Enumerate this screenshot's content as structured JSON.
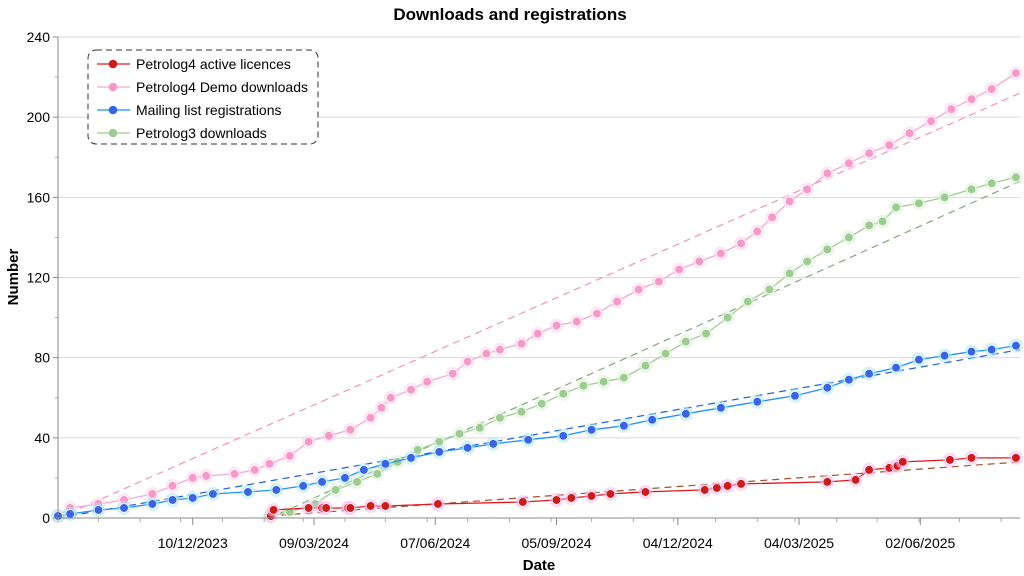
{
  "chart_data": {
    "type": "line",
    "title": "Downloads and registrations",
    "xlabel": "Date",
    "ylabel": "Number",
    "x_ticks": [
      "10/12/2023",
      "09/03/2024",
      "07/06/2024",
      "05/09/2024",
      "04/12/2024",
      "04/03/2025",
      "02/06/2025"
    ],
    "x_start": "2023-09-01",
    "x_end": "2025-08-15",
    "ylim": [
      0,
      240
    ],
    "y_ticks": [
      0,
      40,
      80,
      120,
      160,
      200,
      240
    ],
    "grid": "horizontal",
    "legend_position": "top-left",
    "series": [
      {
        "name": "Petrolog4 active licences",
        "color": "#e0161e",
        "marker_color": "#c81e1e",
        "halo_color": "#f7b6f0",
        "trend_color": "#a0522d",
        "trendline": [
          [
            "2024-02-05",
            1
          ],
          [
            "2025-08-15",
            28
          ]
        ],
        "points": [
          [
            "2024-02-06",
            1
          ],
          [
            "2024-02-08",
            4
          ],
          [
            "2024-03-05",
            5
          ],
          [
            "2024-03-15",
            5
          ],
          [
            "2024-03-18",
            5
          ],
          [
            "2024-04-03",
            5
          ],
          [
            "2024-04-05",
            5
          ],
          [
            "2024-04-20",
            6
          ],
          [
            "2024-05-01",
            6
          ],
          [
            "2024-06-09",
            7
          ],
          [
            "2024-08-11",
            8
          ],
          [
            "2024-09-05",
            9
          ],
          [
            "2024-09-16",
            10
          ],
          [
            "2024-10-01",
            11
          ],
          [
            "2024-10-15",
            12
          ],
          [
            "2024-11-10",
            13
          ],
          [
            "2024-12-24",
            14
          ],
          [
            "2025-01-02",
            15
          ],
          [
            "2025-01-10",
            16
          ],
          [
            "2025-01-20",
            17
          ],
          [
            "2025-03-25",
            18
          ],
          [
            "2025-04-15",
            19
          ],
          [
            "2025-04-25",
            24
          ],
          [
            "2025-05-10",
            25
          ],
          [
            "2025-05-16",
            26
          ],
          [
            "2025-05-20",
            28
          ],
          [
            "2025-06-24",
            29
          ],
          [
            "2025-07-10",
            30
          ],
          [
            "2025-08-12",
            30
          ]
        ]
      },
      {
        "name": "Petrolog4 Demo downloads",
        "color": "#f4a6d4",
        "marker_color": "#f49ac8",
        "halo_color": "#f9d4ec",
        "trend_color": "#f490c4",
        "trendline": [
          [
            "2023-09-01",
            0
          ],
          [
            "2025-08-15",
            212
          ]
        ],
        "points": [
          [
            "2023-09-01",
            1
          ],
          [
            "2023-09-10",
            5
          ],
          [
            "2023-10-01",
            7
          ],
          [
            "2023-10-20",
            9
          ],
          [
            "2023-11-10",
            12
          ],
          [
            "2023-11-25",
            16
          ],
          [
            "2023-12-10",
            20
          ],
          [
            "2023-12-20",
            21
          ],
          [
            "2024-01-10",
            22
          ],
          [
            "2024-01-25",
            24
          ],
          [
            "2024-02-05",
            27
          ],
          [
            "2024-02-20",
            31
          ],
          [
            "2024-03-05",
            38
          ],
          [
            "2024-03-20",
            41
          ],
          [
            "2024-04-05",
            44
          ],
          [
            "2024-04-20",
            50
          ],
          [
            "2024-04-28",
            55
          ],
          [
            "2024-05-05",
            60
          ],
          [
            "2024-05-20",
            64
          ],
          [
            "2024-06-01",
            68
          ],
          [
            "2024-06-20",
            72
          ],
          [
            "2024-07-01",
            78
          ],
          [
            "2024-07-15",
            82
          ],
          [
            "2024-07-25",
            84
          ],
          [
            "2024-08-10",
            87
          ],
          [
            "2024-08-22",
            92
          ],
          [
            "2024-09-05",
            96
          ],
          [
            "2024-09-20",
            98
          ],
          [
            "2024-10-05",
            102
          ],
          [
            "2024-10-20",
            108
          ],
          [
            "2024-11-05",
            114
          ],
          [
            "2024-11-20",
            118
          ],
          [
            "2024-12-05",
            124
          ],
          [
            "2024-12-20",
            128
          ],
          [
            "2025-01-05",
            132
          ],
          [
            "2025-01-20",
            137
          ],
          [
            "2025-02-01",
            143
          ],
          [
            "2025-02-12",
            150
          ],
          [
            "2025-02-25",
            158
          ],
          [
            "2025-03-10",
            164
          ],
          [
            "2025-03-25",
            172
          ],
          [
            "2025-04-10",
            177
          ],
          [
            "2025-04-25",
            182
          ],
          [
            "2025-05-10",
            186
          ],
          [
            "2025-05-25",
            192
          ],
          [
            "2025-06-10",
            198
          ],
          [
            "2025-06-25",
            204
          ],
          [
            "2025-07-10",
            209
          ],
          [
            "2025-07-25",
            214
          ],
          [
            "2025-08-12",
            222
          ]
        ]
      },
      {
        "name": "Mailing list registrations",
        "color": "#1e90ff",
        "marker_color": "#3b64e0",
        "halo_color": "#a8e8f4",
        "trend_color": "#1f5fd6",
        "trendline": [
          [
            "2023-09-01",
            0
          ],
          [
            "2025-08-15",
            84
          ]
        ],
        "points": [
          [
            "2023-09-01",
            1
          ],
          [
            "2023-09-10",
            2
          ],
          [
            "2023-10-01",
            4
          ],
          [
            "2023-10-20",
            5
          ],
          [
            "2023-11-10",
            7
          ],
          [
            "2023-11-25",
            9
          ],
          [
            "2023-12-10",
            10
          ],
          [
            "2023-12-25",
            12
          ],
          [
            "2024-01-20",
            13
          ],
          [
            "2024-02-10",
            14
          ],
          [
            "2024-03-01",
            16
          ],
          [
            "2024-03-15",
            18
          ],
          [
            "2024-04-01",
            20
          ],
          [
            "2024-04-15",
            24
          ],
          [
            "2024-05-01",
            27
          ],
          [
            "2024-05-20",
            30
          ],
          [
            "2024-06-10",
            33
          ],
          [
            "2024-07-01",
            35
          ],
          [
            "2024-07-20",
            37
          ],
          [
            "2024-08-15",
            39
          ],
          [
            "2024-09-10",
            41
          ],
          [
            "2024-10-01",
            44
          ],
          [
            "2024-10-25",
            46
          ],
          [
            "2024-11-15",
            49
          ],
          [
            "2024-12-10",
            52
          ],
          [
            "2025-01-05",
            55
          ],
          [
            "2025-02-01",
            58
          ],
          [
            "2025-03-01",
            61
          ],
          [
            "2025-03-25",
            65
          ],
          [
            "2025-04-10",
            69
          ],
          [
            "2025-04-25",
            72
          ],
          [
            "2025-05-15",
            75
          ],
          [
            "2025-06-01",
            79
          ],
          [
            "2025-06-20",
            81
          ],
          [
            "2025-07-10",
            83
          ],
          [
            "2025-07-25",
            84
          ],
          [
            "2025-08-12",
            86
          ]
        ]
      },
      {
        "name": "Petrolog3 downloads",
        "color": "#9dcc8f",
        "marker_color": "#9ecb94",
        "halo_color": "#dceed5",
        "trend_color": "#7fa87a",
        "trendline": [
          [
            "2024-02-05",
            0
          ],
          [
            "2025-08-15",
            168
          ]
        ],
        "points": [
          [
            "2024-02-05",
            1
          ],
          [
            "2024-02-20",
            3
          ],
          [
            "2024-03-10",
            7
          ],
          [
            "2024-03-25",
            14
          ],
          [
            "2024-04-10",
            18
          ],
          [
            "2024-04-25",
            22
          ],
          [
            "2024-05-10",
            28
          ],
          [
            "2024-05-25",
            34
          ],
          [
            "2024-06-10",
            38
          ],
          [
            "2024-06-25",
            42
          ],
          [
            "2024-07-10",
            45
          ],
          [
            "2024-07-25",
            50
          ],
          [
            "2024-08-10",
            53
          ],
          [
            "2024-08-25",
            57
          ],
          [
            "2024-09-10",
            62
          ],
          [
            "2024-09-25",
            66
          ],
          [
            "2024-10-10",
            68
          ],
          [
            "2024-10-25",
            70
          ],
          [
            "2024-11-10",
            76
          ],
          [
            "2024-11-25",
            82
          ],
          [
            "2024-12-10",
            88
          ],
          [
            "2024-12-25",
            92
          ],
          [
            "2025-01-10",
            100
          ],
          [
            "2025-01-25",
            108
          ],
          [
            "2025-02-10",
            114
          ],
          [
            "2025-02-25",
            122
          ],
          [
            "2025-03-10",
            128
          ],
          [
            "2025-03-25",
            134
          ],
          [
            "2025-04-10",
            140
          ],
          [
            "2025-04-25",
            146
          ],
          [
            "2025-05-05",
            148
          ],
          [
            "2025-05-15",
            155
          ],
          [
            "2025-06-01",
            157
          ],
          [
            "2025-06-20",
            160
          ],
          [
            "2025-07-10",
            164
          ],
          [
            "2025-07-25",
            167
          ],
          [
            "2025-08-12",
            170
          ]
        ]
      }
    ]
  }
}
